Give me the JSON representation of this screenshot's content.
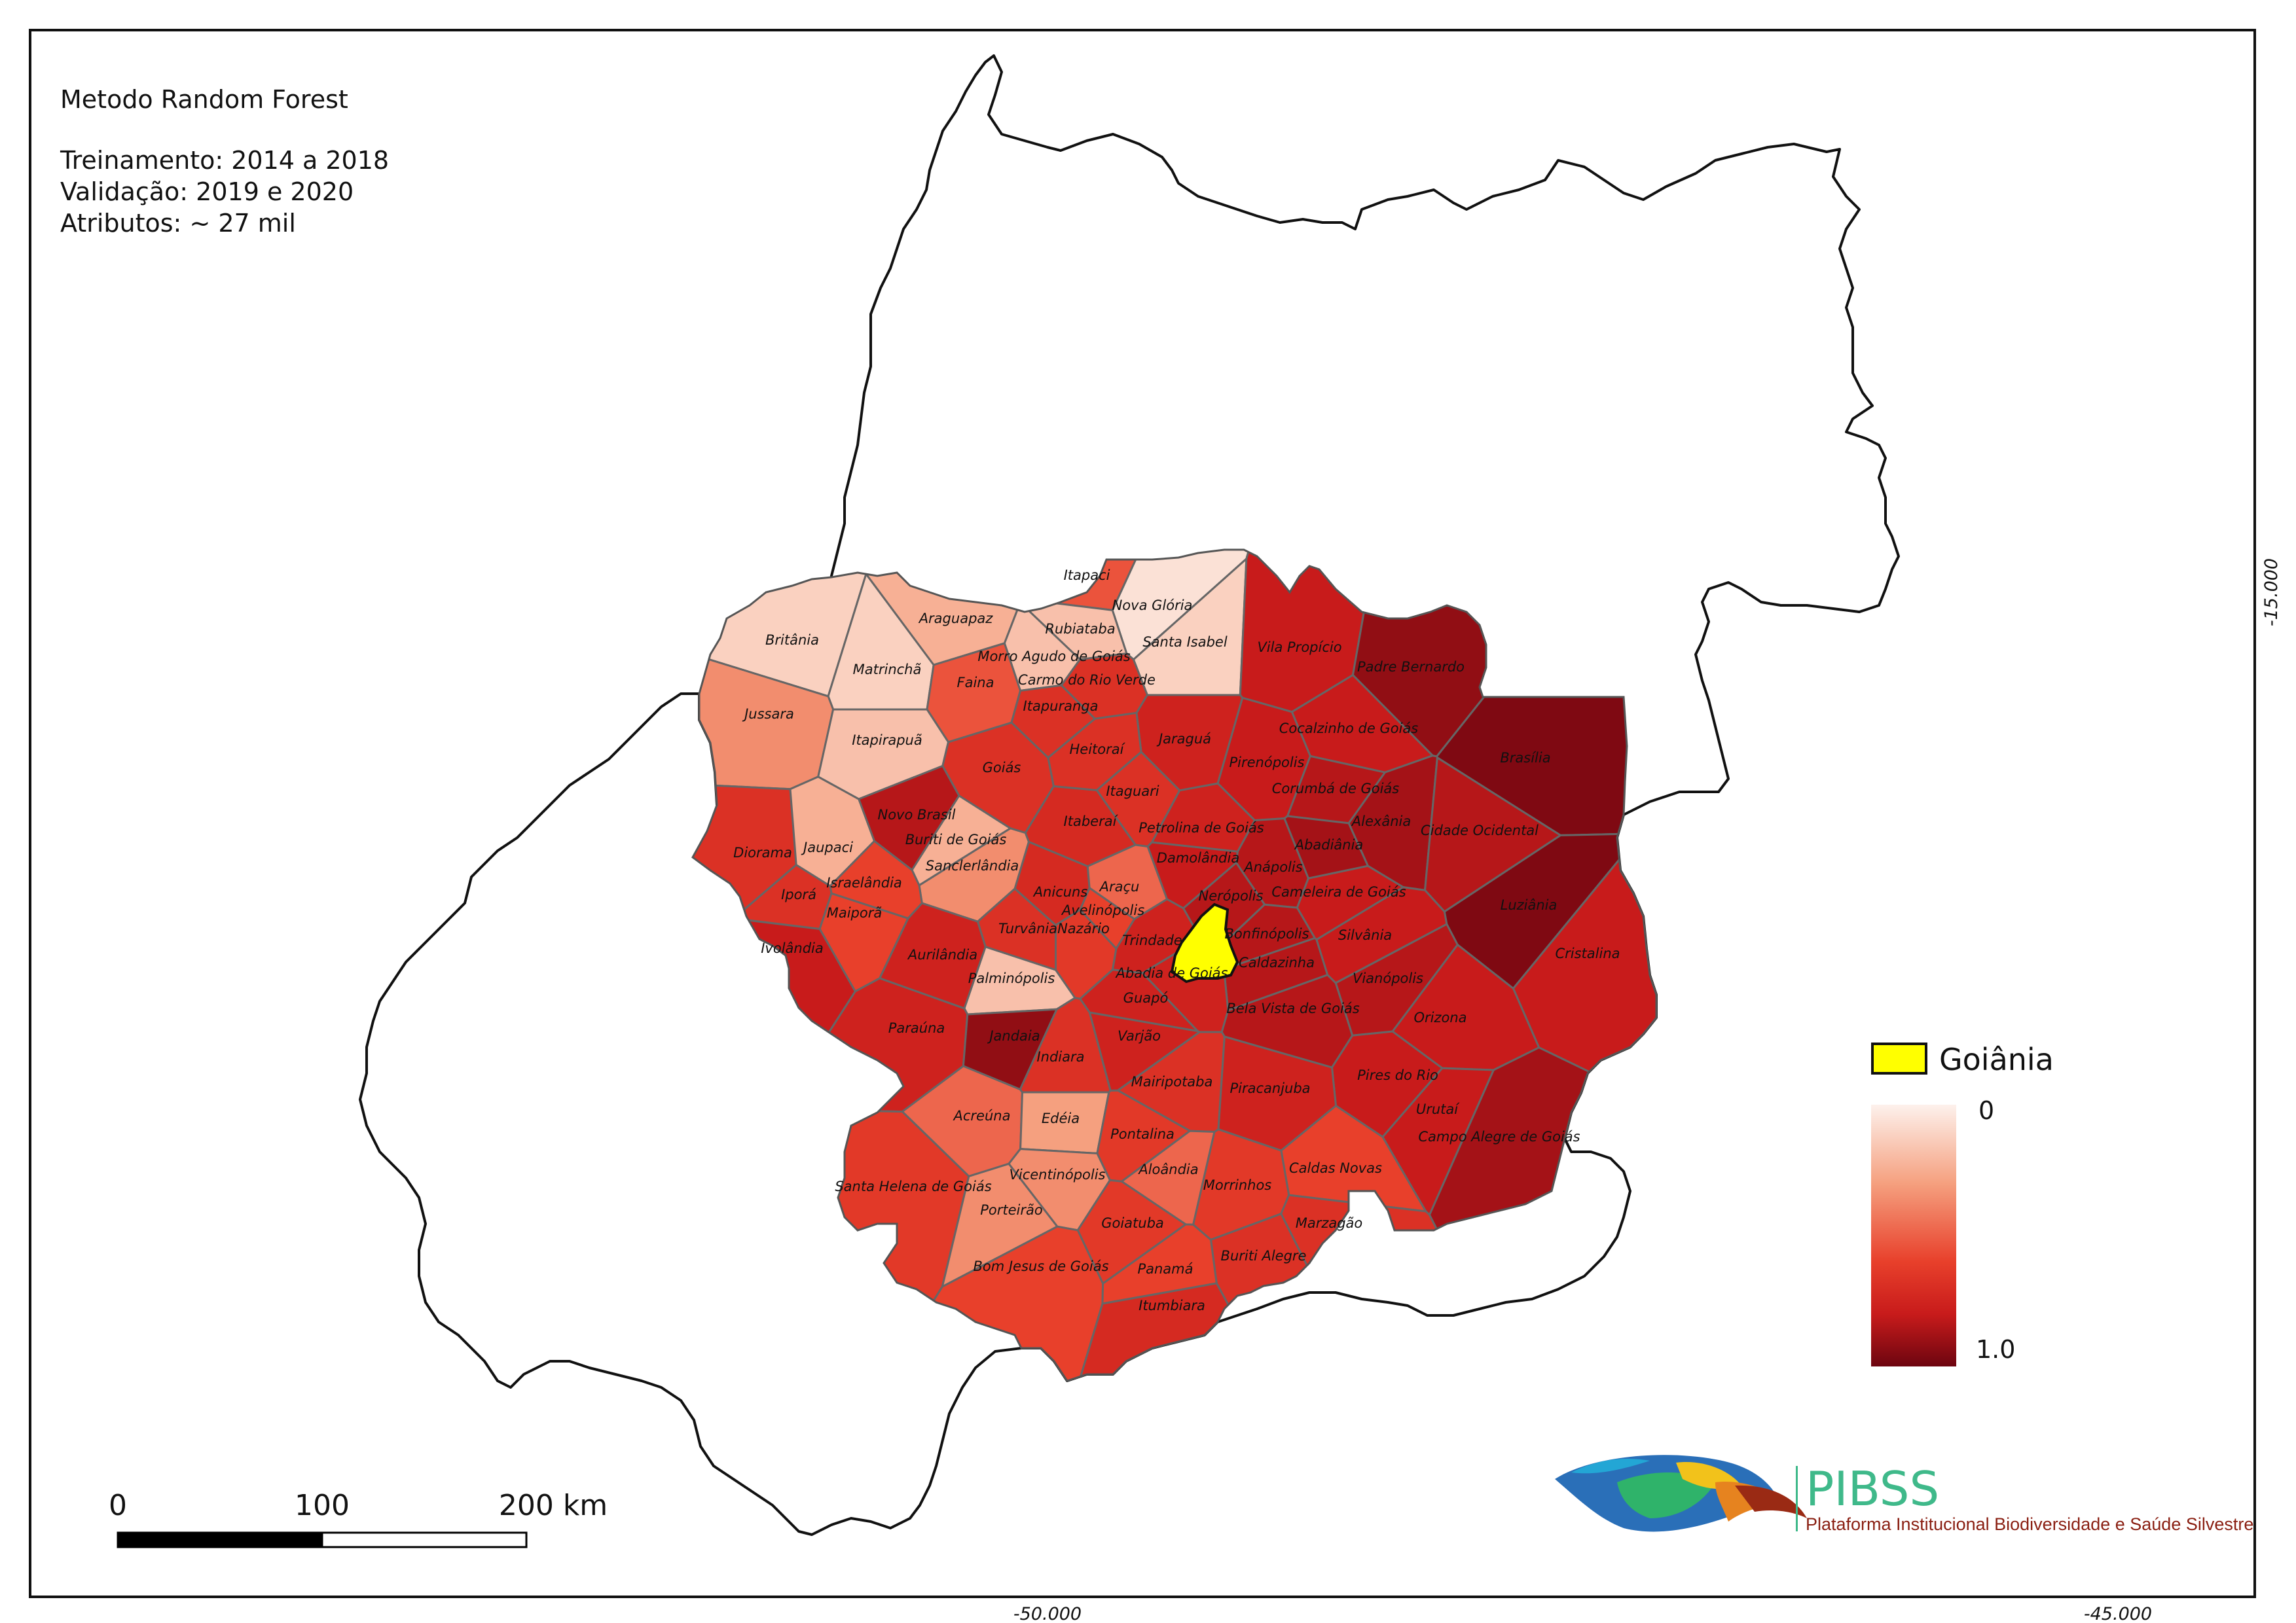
{
  "header": {
    "method": "Metodo Random Forest",
    "training": "Treinamento: 2014 a 2018",
    "validation": "Validação: 2019 e 2020",
    "attributes": "Atributos: ~ 27 mil"
  },
  "coords": {
    "lon_left": "-50.000",
    "lon_right": "-45.000",
    "lat": "-15.000"
  },
  "scale_bar": {
    "labels": [
      "0",
      "100",
      "200 km"
    ]
  },
  "legend": {
    "highlight_label": "Goiânia",
    "highlight_color": "#ffff00",
    "gradient_min": "0",
    "gradient_max": "1.0",
    "gradient_colors": [
      "#fdf1ec",
      "#f5a07f",
      "#e8402b",
      "#c81b1b",
      "#6d0510"
    ]
  },
  "logo": {
    "name": "PIBSS",
    "subtitle": "Plataforma Institucional Biodiversidade e Saúde Silvestre"
  },
  "municipalities": [
    {
      "name": "Itapaci",
      "value": 0.45
    },
    {
      "name": "Nova Glória",
      "value": 0.05
    },
    {
      "name": "Araguapaz",
      "value": 0.2
    },
    {
      "name": "Rubiataba",
      "value": 0.15
    },
    {
      "name": "Santa Isabel",
      "value": 0.1
    },
    {
      "name": "Vila Propício",
      "value": 0.75
    },
    {
      "name": "Padre Bernardo",
      "value": 0.9
    },
    {
      "name": "Britânia",
      "value": 0.1
    },
    {
      "name": "Morro Agudo de Goiás",
      "value": 0.15
    },
    {
      "name": "Matrinchã",
      "value": 0.1
    },
    {
      "name": "Faina",
      "value": 0.45
    },
    {
      "name": "Carmo do Rio Verde",
      "value": 0.6
    },
    {
      "name": "Itapuranga",
      "value": 0.6
    },
    {
      "name": "Jussara",
      "value": 0.3
    },
    {
      "name": "Itapirapuã",
      "value": 0.15
    },
    {
      "name": "Cocalzinho de Goiás",
      "value": 0.75
    },
    {
      "name": "Brasília",
      "value": 0.95
    },
    {
      "name": "Jaraguá",
      "value": 0.7
    },
    {
      "name": "Heitoraí",
      "value": 0.6
    },
    {
      "name": "Pirenópolis",
      "value": 0.75
    },
    {
      "name": "Goiás",
      "value": 0.6
    },
    {
      "name": "Corumbá de Goiás",
      "value": 0.8
    },
    {
      "name": "Itaguari",
      "value": 0.6
    },
    {
      "name": "Novo Brasil",
      "value": 0.8
    },
    {
      "name": "Alexânia",
      "value": 0.85
    },
    {
      "name": "Itaberaí",
      "value": 0.65
    },
    {
      "name": "Buriti de Goiás",
      "value": 0.2
    },
    {
      "name": "Petrolina de Goiás",
      "value": 0.7
    },
    {
      "name": "Cidade Ocidental",
      "value": 0.8
    },
    {
      "name": "Diorama",
      "value": 0.6
    },
    {
      "name": "Jaupaci",
      "value": 0.2
    },
    {
      "name": "Abadiânia",
      "value": 0.85
    },
    {
      "name": "Sanclerlândia",
      "value": 0.3
    },
    {
      "name": "Damolândia",
      "value": 0.75
    },
    {
      "name": "Anápolis",
      "value": 0.8
    },
    {
      "name": "Israelândia",
      "value": 0.5
    },
    {
      "name": "Anicuns",
      "value": 0.65
    },
    {
      "name": "Araçu",
      "value": 0.4
    },
    {
      "name": "Cameleira de Goiás",
      "value": 0.75
    },
    {
      "name": "Luziânia",
      "value": 0.95
    },
    {
      "name": "Iporá",
      "value": 0.6
    },
    {
      "name": "Avelinópolis",
      "value": 0.5
    },
    {
      "name": "Nerópolis",
      "value": 0.8
    },
    {
      "name": "Maiporã",
      "value": 0.5
    },
    {
      "name": "Turvânia",
      "value": 0.6
    },
    {
      "name": "Nazário",
      "value": 0.55
    },
    {
      "name": "Bonfinópolis",
      "value": 0.8
    },
    {
      "name": "Silvânia",
      "value": 0.75
    },
    {
      "name": "Ivolândia",
      "value": 0.75
    },
    {
      "name": "Aurilândia",
      "value": 0.7
    },
    {
      "name": "Trindade",
      "value": 0.7
    },
    {
      "name": "Cristalina",
      "value": 0.75
    },
    {
      "name": "Caldazinha",
      "value": 0.8
    },
    {
      "name": "Palminópolis",
      "value": 0.15
    },
    {
      "name": "Abadia de Goiás",
      "value": 0.7
    },
    {
      "name": "Vianópolis",
      "value": 0.8
    },
    {
      "name": "Guapó",
      "value": 0.7
    },
    {
      "name": "Bela Vista de Goiás",
      "value": 0.8
    },
    {
      "name": "Orizona",
      "value": 0.75
    },
    {
      "name": "Paraúna",
      "value": 0.7
    },
    {
      "name": "Jandaia",
      "value": 0.9
    },
    {
      "name": "Varjão",
      "value": 0.7
    },
    {
      "name": "Indiara",
      "value": 0.6
    },
    {
      "name": "Pires do Rio",
      "value": 0.75
    },
    {
      "name": "Mairipotaba",
      "value": 0.6
    },
    {
      "name": "Piracanjuba",
      "value": 0.7
    },
    {
      "name": "Urutaí",
      "value": 0.75
    },
    {
      "name": "Acreúna",
      "value": 0.4
    },
    {
      "name": "Edéia",
      "value": 0.25
    },
    {
      "name": "Campo Alegre de Goiás",
      "value": 0.85
    },
    {
      "name": "Pontalina",
      "value": 0.55
    },
    {
      "name": "Caldas Novas",
      "value": 0.5
    },
    {
      "name": "Santa Helena de Goiás",
      "value": 0.55
    },
    {
      "name": "Vicentinópolis",
      "value": 0.3
    },
    {
      "name": "Aloândia",
      "value": 0.4
    },
    {
      "name": "Morrinhos",
      "value": 0.55
    },
    {
      "name": "Porteirão",
      "value": 0.3
    },
    {
      "name": "Goiatuba",
      "value": 0.55
    },
    {
      "name": "Marzagão",
      "value": 0.6
    },
    {
      "name": "Buriti Alegre",
      "value": 0.6
    },
    {
      "name": "Bom Jesus de Goiás",
      "value": 0.5
    },
    {
      "name": "Panamá",
      "value": 0.5
    },
    {
      "name": "Itumbiara",
      "value": 0.65
    }
  ]
}
